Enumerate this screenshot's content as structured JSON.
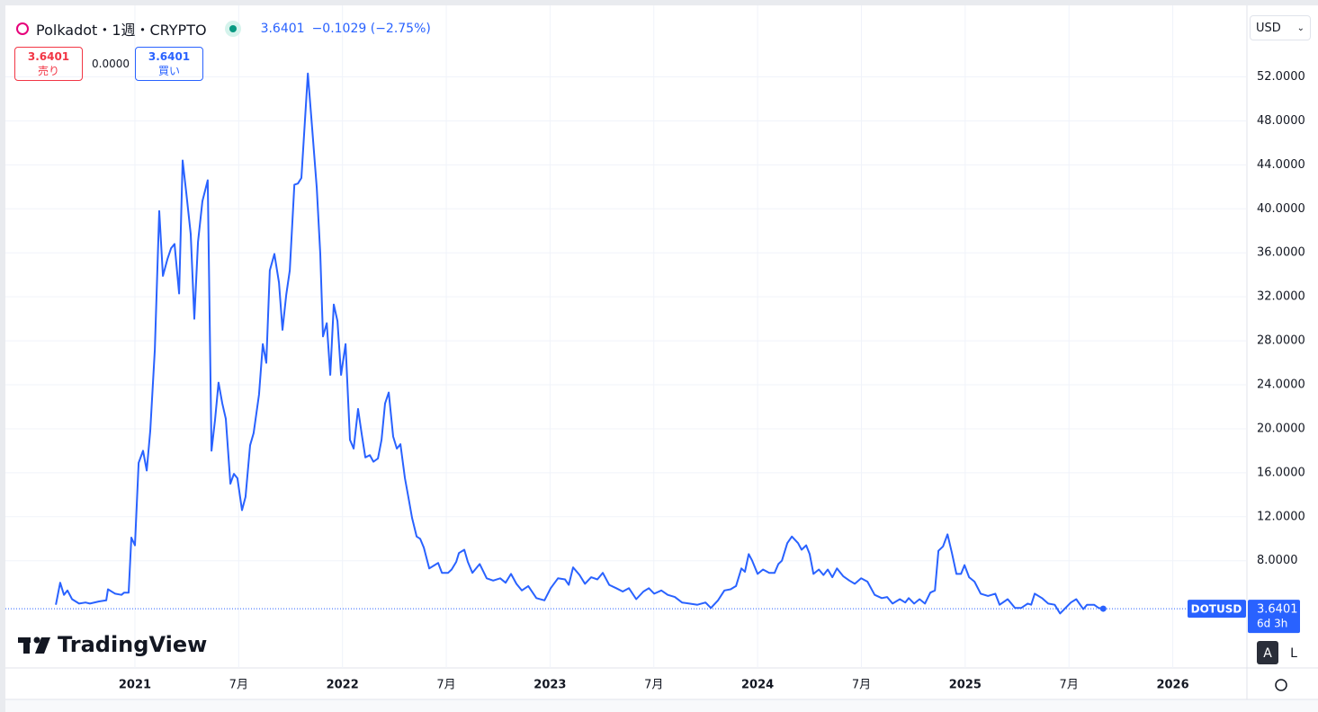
{
  "header": {
    "title": "Polkadot・1週・CRYPTO",
    "price": "3.6401",
    "change": "−0.1029 (−2.75%)",
    "sell_price": "3.6401",
    "sell_label": "売り",
    "spread": "0.0000",
    "buy_price": "3.6401",
    "buy_label": "買い",
    "currency": "USD",
    "logo": "TradingView",
    "scale_auto": "A",
    "scale_log": "L"
  },
  "chart_data": {
    "type": "line",
    "countdown": "6d 3h",
    "xlim": [
      2020.376,
      2026.353
    ],
    "ylim": [
      -1.75,
      58.5
    ],
    "xticks": [
      {
        "value": 2021,
        "label": "2021"
      },
      {
        "value": 2021.5,
        "label": "7月"
      },
      {
        "value": 2022,
        "label": "2022"
      },
      {
        "value": 2022.5,
        "label": "7月"
      },
      {
        "value": 2023,
        "label": "2023"
      },
      {
        "value": 2023.5,
        "label": "7月"
      },
      {
        "value": 2024,
        "label": "2024"
      },
      {
        "value": 2024.5,
        "label": "7月"
      },
      {
        "value": 2025,
        "label": "2025"
      },
      {
        "value": 2025.5,
        "label": "7月"
      },
      {
        "value": 2026,
        "label": "2026"
      }
    ],
    "yticks": [
      {
        "value": 8,
        "label": "8.0000"
      },
      {
        "value": 12,
        "label": "12.0000"
      },
      {
        "value": 16,
        "label": "16.0000"
      },
      {
        "value": 20,
        "label": "20.0000"
      },
      {
        "value": 24,
        "label": "24.0000"
      },
      {
        "value": 28,
        "label": "28.0000"
      },
      {
        "value": 32,
        "label": "32.0000"
      },
      {
        "value": 36,
        "label": "36.0000"
      },
      {
        "value": 40,
        "label": "40.0000"
      },
      {
        "value": 44,
        "label": "44.0000"
      },
      {
        "value": 48,
        "label": "48.0000"
      },
      {
        "value": 52,
        "label": "52.0000"
      }
    ],
    "grid": true,
    "x": [
      2020.619,
      2020.64,
      2020.658,
      2020.675,
      2020.697,
      2020.731,
      2020.762,
      2020.783,
      2020.827,
      2020.862,
      2020.87,
      2020.905,
      2020.935,
      2020.948,
      2020.97,
      2020.983,
      2021.0,
      2021.018,
      2021.039,
      2021.057,
      2021.074,
      2021.096,
      2021.117,
      2021.135,
      2021.156,
      2021.174,
      2021.191,
      2021.213,
      2021.23,
      2021.247,
      2021.269,
      2021.286,
      2021.304,
      2021.325,
      2021.351,
      2021.369,
      2021.386,
      2021.403,
      2021.421,
      2021.438,
      2021.46,
      2021.477,
      2021.494,
      2021.516,
      2021.533,
      2021.555,
      2021.572,
      2021.598,
      2021.616,
      2021.633,
      2021.65,
      2021.672,
      2021.694,
      2021.711,
      2021.729,
      2021.746,
      2021.768,
      2021.785,
      2021.802,
      2021.833,
      2021.854,
      2021.876,
      2021.893,
      2021.906,
      2021.924,
      2021.941,
      2021.958,
      2021.976,
      2021.993,
      2022.015,
      2022.036,
      2022.054,
      2022.075,
      2022.093,
      2022.11,
      2022.132,
      2022.149,
      2022.171,
      2022.188,
      2022.205,
      2022.223,
      2022.244,
      2022.262,
      2022.279,
      2022.301,
      2022.318,
      2022.335,
      2022.357,
      2022.374,
      2022.392,
      2022.418,
      2022.444,
      2022.461,
      2022.479,
      2022.509,
      2022.526,
      2022.548,
      2022.561,
      2022.587,
      2022.604,
      2022.626,
      2022.661,
      2022.695,
      2022.726,
      2022.76,
      2022.786,
      2022.812,
      2022.838,
      2022.864,
      2022.895,
      2022.934,
      2022.973,
      2023.003,
      2023.038,
      2023.072,
      2023.09,
      2023.111,
      2023.142,
      2023.168,
      2023.198,
      2023.228,
      2023.254,
      2023.285,
      2023.319,
      2023.35,
      2023.38,
      2023.415,
      2023.45,
      2023.476,
      2023.502,
      2023.536,
      2023.567,
      2023.601,
      2023.636,
      2023.671,
      2023.71,
      2023.749,
      2023.775,
      2023.809,
      2023.84,
      2023.87,
      2023.896,
      2023.922,
      2023.939,
      2023.957,
      2023.974,
      2024.0,
      2024.026,
      2024.056,
      2024.082,
      2024.1,
      2024.117,
      2024.143,
      2024.165,
      2024.195,
      2024.212,
      2024.234,
      2024.251,
      2024.269,
      2024.295,
      2024.317,
      2024.338,
      2024.36,
      2024.382,
      2024.412,
      2024.442,
      2024.468,
      2024.499,
      2024.529,
      2024.564,
      2024.598,
      2024.624,
      2024.65,
      2024.685,
      2024.711,
      2024.728,
      2024.754,
      2024.78,
      2024.806,
      2024.832,
      2024.854,
      2024.871,
      2024.893,
      2024.915,
      2024.936,
      2024.958,
      2024.98,
      2024.997,
      2025.019,
      2025.045,
      2025.075,
      2025.11,
      2025.145,
      2025.166,
      2025.205,
      2025.24,
      2025.27,
      2025.301,
      2025.318,
      2025.335,
      2025.37,
      2025.4,
      2025.431,
      2025.457,
      2025.483,
      2025.509,
      2025.535,
      2025.569,
      2025.587,
      2025.621,
      2025.643,
      2025.665
    ],
    "series": [
      {
        "name": "DOTUSD",
        "color": "#2962ff",
        "values": [
          4.0,
          6.0,
          4.9,
          5.3,
          4.5,
          4.1,
          4.2,
          4.1,
          4.3,
          4.4,
          5.4,
          5.0,
          4.9,
          5.1,
          5.1,
          10.1,
          9.4,
          16.9,
          18.0,
          16.2,
          19.8,
          27.2,
          39.8,
          33.9,
          35.4,
          36.4,
          36.8,
          32.3,
          44.4,
          41.5,
          37.7,
          30.0,
          37.0,
          40.7,
          42.6,
          18.0,
          20.8,
          24.2,
          22.3,
          20.9,
          15.0,
          15.9,
          15.5,
          12.6,
          13.8,
          18.5,
          19.6,
          23.1,
          27.7,
          26.0,
          34.4,
          35.9,
          33.3,
          29.0,
          32.2,
          34.4,
          42.2,
          42.3,
          42.8,
          52.3,
          47.3,
          41.9,
          35.9,
          28.4,
          29.6,
          24.9,
          31.3,
          29.8,
          24.9,
          27.7,
          19.0,
          18.2,
          21.8,
          19.5,
          17.4,
          17.6,
          17.0,
          17.3,
          19.0,
          22.3,
          23.3,
          19.3,
          18.2,
          18.6,
          15.5,
          13.7,
          11.9,
          10.2,
          10.0,
          9.2,
          7.3,
          7.6,
          7.8,
          6.9,
          6.9,
          7.2,
          7.9,
          8.7,
          9.0,
          7.9,
          6.9,
          7.7,
          6.4,
          6.2,
          6.4,
          6.0,
          6.8,
          5.9,
          5.3,
          5.7,
          4.6,
          4.4,
          5.5,
          6.4,
          6.3,
          5.8,
          7.4,
          6.7,
          5.9,
          6.5,
          6.3,
          6.9,
          5.8,
          5.5,
          5.2,
          5.5,
          4.5,
          5.2,
          5.5,
          5.0,
          5.3,
          4.9,
          4.7,
          4.2,
          4.1,
          4.0,
          4.2,
          3.7,
          4.4,
          5.3,
          5.4,
          5.7,
          7.3,
          7.0,
          8.6,
          8.0,
          6.8,
          7.2,
          6.9,
          6.9,
          7.7,
          8.0,
          9.6,
          10.2,
          9.6,
          9.0,
          9.4,
          8.6,
          6.8,
          7.2,
          6.7,
          7.2,
          6.5,
          7.3,
          6.6,
          6.2,
          5.9,
          6.4,
          6.1,
          4.9,
          4.6,
          4.7,
          4.1,
          4.5,
          4.2,
          4.6,
          4.1,
          4.5,
          4.1,
          5.1,
          5.3,
          8.9,
          9.3,
          10.4,
          8.7,
          6.8,
          6.8,
          7.6,
          6.5,
          6.1,
          5.0,
          4.8,
          5.0,
          4.0,
          4.5,
          3.7,
          3.7,
          4.1,
          4.0,
          5.0,
          4.6,
          4.1,
          4.0,
          3.2,
          3.7,
          4.2,
          4.5,
          3.6,
          4.0,
          4.0,
          3.7,
          3.6401
        ]
      }
    ]
  }
}
